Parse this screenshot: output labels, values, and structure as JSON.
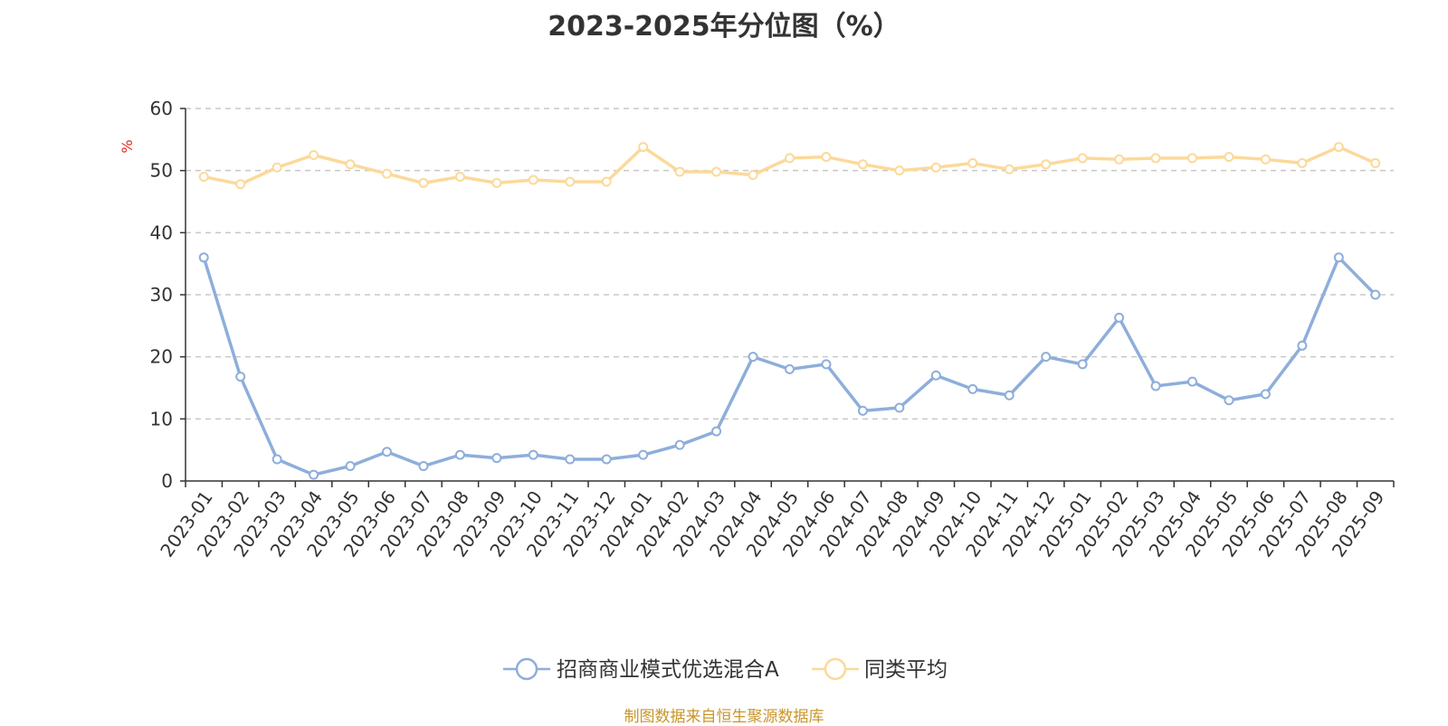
{
  "title": "2023-2025年分位图（%）",
  "source_text": "制图数据来自恒生聚源数据库",
  "colors": {
    "series1": "#8eaedb",
    "series2": "#fcd99a",
    "unit": "#e8281c",
    "source": "#c9962a",
    "grid": "#c8c8c8",
    "axis": "#333333"
  },
  "chart_data": {
    "type": "line",
    "title": "2023-2025年分位图（%）",
    "ylabel": "%",
    "ylim": [
      0,
      60
    ],
    "yticks": [
      "0",
      "10",
      "20",
      "30",
      "40",
      "50",
      "60"
    ],
    "grid": "horizontal-dashed",
    "legend_position": "bottom",
    "categories": [
      "2023-01",
      "2023-02",
      "2023-03",
      "2023-04",
      "2023-05",
      "2023-06",
      "2023-07",
      "2023-08",
      "2023-09",
      "2023-10",
      "2023-11",
      "2023-12",
      "2024-01",
      "2024-02",
      "2024-03",
      "2024-04",
      "2024-05",
      "2024-06",
      "2024-07",
      "2024-08",
      "2024-09",
      "2024-10",
      "2024-11",
      "2024-12",
      "2025-01",
      "2025-02",
      "2025-03",
      "2025-04",
      "2025-05",
      "2025-06",
      "2025-07",
      "2025-08",
      "2025-09"
    ],
    "series": [
      {
        "name": "招商商业模式优选混合A",
        "values": [
          36,
          16.8,
          3.5,
          1,
          2.4,
          4.7,
          2.4,
          4.2,
          3.7,
          4.2,
          3.5,
          3.5,
          4.2,
          5.8,
          8,
          20,
          18,
          18.8,
          11.3,
          11.8,
          17,
          14.8,
          13.8,
          20,
          18.8,
          26.3,
          15.3,
          16,
          13,
          14,
          21.8,
          36,
          30
        ]
      },
      {
        "name": "同类平均",
        "values": [
          49,
          47.8,
          50.5,
          52.5,
          51,
          49.5,
          48,
          49,
          48,
          48.5,
          48.2,
          48.2,
          53.8,
          49.8,
          49.8,
          49.3,
          52,
          52.2,
          51,
          50,
          50.5,
          51.2,
          50.2,
          51,
          52,
          51.8,
          52,
          52,
          52.2,
          51.8,
          51.2,
          53.8,
          51.2
        ]
      }
    ]
  }
}
